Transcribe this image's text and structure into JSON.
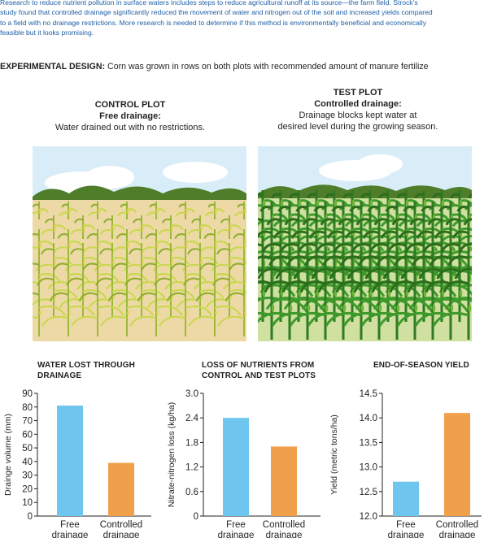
{
  "intro": {
    "line1": "Research to reduce nutrient pollution in surface waters includes steps to reduce agricultural runoff at its source—the farm field. Strock’s",
    "line2": "study found that controlled drainage significantly reduced the movement of water and nitrogen out of the soil and increased yields compared",
    "line3": "to a field with no drainage restrictions. More research is needed to determine if this method is environmentally beneficial and economically",
    "line4": "feasible but it looks promising."
  },
  "design": {
    "label": "EXPERIMENTAL DESIGN:",
    "text": " Corn was grown in rows on both plots with recommended amount of manure fertilize"
  },
  "control_plot": {
    "title": "CONTROL PLOT",
    "subtitle": "Free drainage:",
    "desc1": "Water drained out with no restrictions."
  },
  "test_plot": {
    "title": "TEST PLOT",
    "subtitle": "Controlled drainage:",
    "desc1": "Drainage blocks kept water at",
    "desc2": "desired level during the growing season."
  },
  "colors": {
    "free": "#6ec6ee",
    "controlled": "#f0a04b",
    "sky": "#d9edf8",
    "soil": "#ecd9a6"
  },
  "chart_data": [
    {
      "type": "bar",
      "title_line1": "WATER LOST THROUGH",
      "title_line2": "DRAINAGE",
      "ylabel": "Drainge volume (mm)",
      "ylim": [
        0,
        90
      ],
      "yticks": [
        "0",
        "10",
        "20",
        "30",
        "40",
        "50",
        "60",
        "70",
        "80",
        "90"
      ],
      "categories": [
        [
          "Free",
          "drainage"
        ],
        [
          "Controlled",
          "drainage"
        ]
      ],
      "values": [
        81,
        39
      ]
    },
    {
      "type": "bar",
      "title_line1": "LOSS OF NUTRIENTS FROM",
      "title_line2": "CONTROL AND TEST PLOTS",
      "ylabel": "Nitrate-nitrogen loss (kg/ha)",
      "ylim": [
        0,
        3.0
      ],
      "yticks": [
        "0",
        "0.6",
        "1.2",
        "1.8",
        "2.4",
        "3.0"
      ],
      "categories": [
        [
          "Free",
          "drainage"
        ],
        [
          "Controlled",
          "drainage"
        ]
      ],
      "values": [
        2.4,
        1.7
      ]
    },
    {
      "type": "bar",
      "title_line1": "END-OF-SEASON YIELD",
      "title_line2": "",
      "ylabel": "Yield (metric tons/ha)",
      "ylim": [
        12.0,
        14.5
      ],
      "yticks": [
        "12.0",
        "12.5",
        "13.0",
        "13.5",
        "14.0",
        "14.5"
      ],
      "categories": [
        [
          "Free",
          "drainage"
        ],
        [
          "Controlled",
          "drainage"
        ]
      ],
      "values": [
        12.7,
        14.1
      ]
    }
  ]
}
